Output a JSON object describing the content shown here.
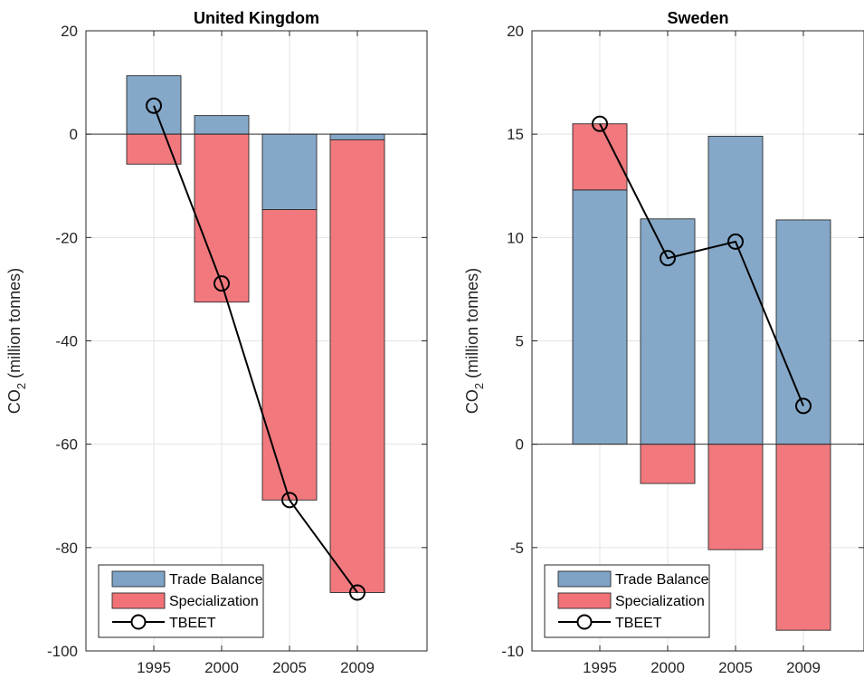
{
  "chart_data": [
    {
      "type": "bar",
      "title": "United Kingdom",
      "ylabel_main": "CO",
      "ylabel_sub": "2",
      "ylabel_rest": " (million tonnes)",
      "categories": [
        "1995",
        "2000",
        "2005",
        "2009"
      ],
      "ylim": [
        -100,
        20
      ],
      "yticks": [
        20,
        0,
        -20,
        -40,
        -60,
        -80,
        -100
      ],
      "ytick_labels": [
        "20",
        "0",
        "-20",
        "-40",
        "-60",
        "-80",
        "-100"
      ],
      "grid": true,
      "stacked": true,
      "legend_position": "bottom-left",
      "series": [
        {
          "name": "Trade Balance",
          "type": "bar",
          "color": "#7ea3c6",
          "values": [
            11.3,
            3.6,
            -14.6,
            -1.1
          ]
        },
        {
          "name": "Specialization",
          "type": "bar",
          "color": "#f07277",
          "values": [
            -5.8,
            -32.5,
            -56.2,
            -87.6
          ]
        },
        {
          "name": "TBEET",
          "type": "line",
          "color": "#000000",
          "marker": "circle",
          "values": [
            5.5,
            -28.9,
            -70.8,
            -88.7
          ]
        }
      ]
    },
    {
      "type": "bar",
      "title": "Sweden",
      "ylabel_main": "CO",
      "ylabel_sub": "2",
      "ylabel_rest": " (million tonnes)",
      "categories": [
        "1995",
        "2000",
        "2005",
        "2009"
      ],
      "ylim": [
        -10,
        20
      ],
      "yticks": [
        20,
        15,
        10,
        5,
        0,
        -5,
        -10
      ],
      "ytick_labels": [
        "20",
        "15",
        "10",
        "5",
        "0",
        "-5",
        "-10"
      ],
      "grid": true,
      "stacked": true,
      "legend_position": "bottom-left",
      "series": [
        {
          "name": "Trade Balance",
          "type": "bar",
          "color": "#7ea3c6",
          "values": [
            12.3,
            10.9,
            14.9,
            10.85
          ]
        },
        {
          "name": "Specialization",
          "type": "bar",
          "color": "#f07277",
          "values": [
            3.2,
            -1.9,
            -5.1,
            -9.0
          ]
        },
        {
          "name": "TBEET",
          "type": "line",
          "color": "#000000",
          "marker": "circle",
          "values": [
            15.5,
            9.0,
            9.8,
            1.85
          ]
        }
      ]
    }
  ]
}
